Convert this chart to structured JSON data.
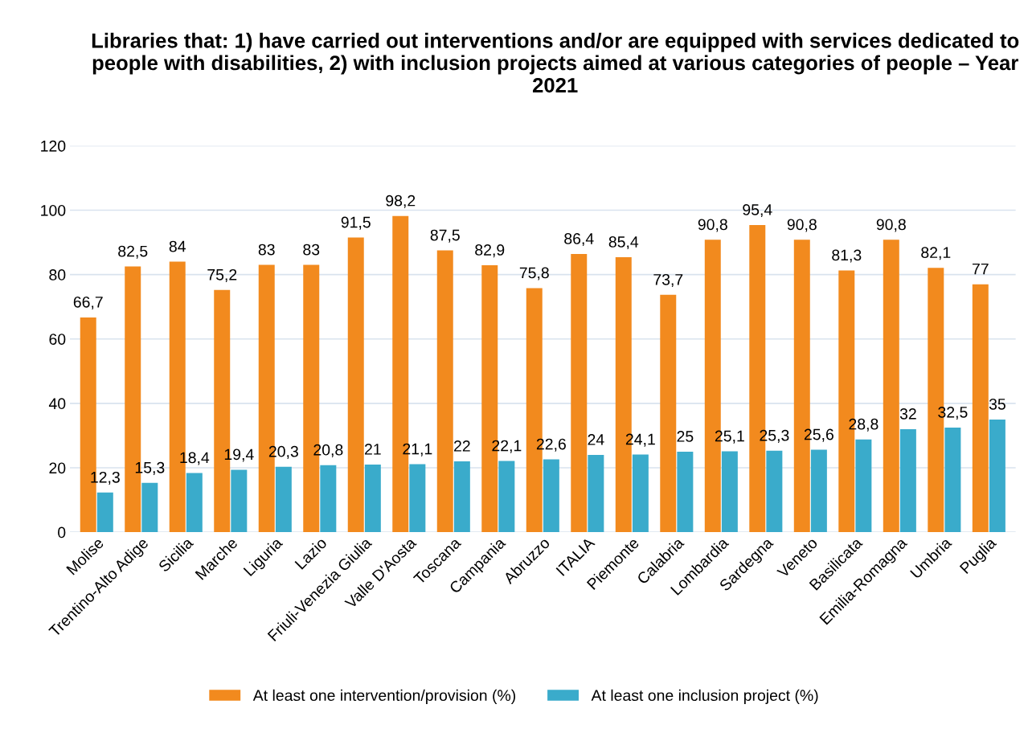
{
  "chart_data": {
    "type": "bar",
    "title": "Libraries that: 1) have carried out interventions and/or are equipped with services dedicated to people with disabilities, 2) with inclusion projects aimed at various categories of people – Year 2021",
    "categories": [
      "Molise",
      "Trentino-Alto Adige",
      "Sicilia",
      "Marche",
      "Liguria",
      "Lazio",
      "Friuli-Venezia Giulia",
      "Valle D'Aosta",
      "Toscana",
      "Campania",
      "Abruzzo",
      "ITALIA",
      "Piemonte",
      "Calabria",
      "Lombardia",
      "Sardegna",
      "Veneto",
      "Basilicata",
      "Emilia-Romagna",
      "Umbria",
      "Puglia"
    ],
    "series": [
      {
        "name": "At least one intervention/provision (%)",
        "color": "#f28a1e",
        "values": [
          66.7,
          82.5,
          84,
          75.2,
          83,
          83,
          91.5,
          98.2,
          87.5,
          82.9,
          75.8,
          86.4,
          85.4,
          73.7,
          90.8,
          95.4,
          90.8,
          81.3,
          90.8,
          82.1,
          77
        ],
        "value_labels": [
          "66,7",
          "82,5",
          "84",
          "75,2",
          "83",
          "83",
          "91,5",
          "98,2",
          "87,5",
          "82,9",
          "75,8",
          "86,4",
          "85,4",
          "73,7",
          "90,8",
          "95,4",
          "90,8",
          "81,3",
          "90,8",
          "82,1",
          "77"
        ]
      },
      {
        "name": "At least one inclusion project (%)",
        "color": "#3aabcb",
        "values": [
          12.3,
          15.3,
          18.4,
          19.4,
          20.3,
          20.8,
          21,
          21.1,
          22,
          22.1,
          22.6,
          24,
          24.1,
          25,
          25.1,
          25.3,
          25.6,
          28.8,
          32,
          32.5,
          35
        ],
        "value_labels": [
          "12,3",
          "15,3",
          "18,4",
          "19,4",
          "20,3",
          "20,8",
          "21",
          "21,1",
          "22",
          "22,1",
          "22,6",
          "24",
          "24,1",
          "25",
          "25,1",
          "25,3",
          "25,6",
          "28,8",
          "32",
          "32,5",
          "35"
        ]
      }
    ],
    "ylim": [
      0,
      120
    ],
    "yticks": [
      0,
      20,
      40,
      60,
      80,
      100,
      120
    ],
    "grid": "y",
    "legend": "bottom"
  }
}
